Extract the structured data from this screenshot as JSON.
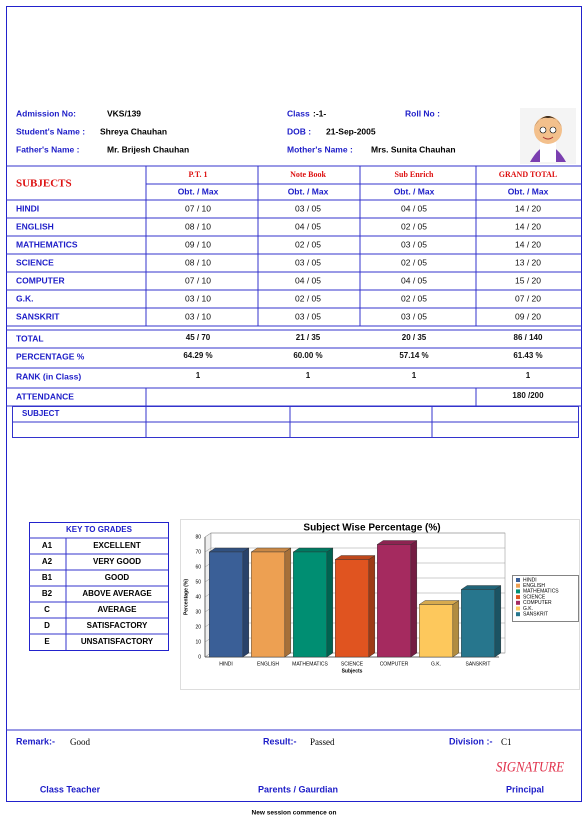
{
  "student": {
    "admission_label": "Admission No:",
    "admission_no": "VKS/139",
    "class_label": "Class",
    "class": ":-1-",
    "roll_label": "Roll No :",
    "name_label": "Student's Name  :",
    "name": "Shreya Chauhan",
    "dob_label": "DOB  :",
    "dob": "21-Sep-2005",
    "father_label": "Father's Name   :",
    "father": "Mr. Brijesh Chauhan",
    "mother_label": "Mother's Name :",
    "mother": "Mrs. Sunita Chauhan"
  },
  "marks": {
    "subjects_header": "SUBJECTS",
    "columns": [
      "P.T. 1",
      "Note Book",
      "Sub Enrich",
      "GRAND TOTAL"
    ],
    "subheaders": [
      "Obt. / Max",
      "Obt. / Max",
      "Obt. / Max",
      "Obt. / Max"
    ],
    "rows": [
      {
        "subject": "HINDI",
        "scores": [
          "07 / 10",
          "03 / 05",
          "04 / 05",
          "14 / 20"
        ]
      },
      {
        "subject": "ENGLISH",
        "scores": [
          "08 / 10",
          "04 / 05",
          "02 / 05",
          "14 / 20"
        ]
      },
      {
        "subject": "MATHEMATICS",
        "scores": [
          "09 / 10",
          "02 / 05",
          "03 / 05",
          "14 / 20"
        ]
      },
      {
        "subject": "SCIENCE",
        "scores": [
          "08 / 10",
          "03 / 05",
          "02 / 05",
          "13 / 20"
        ]
      },
      {
        "subject": "COMPUTER",
        "scores": [
          "07 / 10",
          "04 / 05",
          "04 / 05",
          "15 / 20"
        ]
      },
      {
        "subject": "G.K.",
        "scores": [
          "03 / 10",
          "02 / 05",
          "02 / 05",
          "07 / 20"
        ]
      },
      {
        "subject": "SANSKRIT",
        "scores": [
          "03 / 10",
          "03 / 05",
          "03 / 05",
          "09 / 20"
        ]
      }
    ]
  },
  "summary": [
    {
      "label": "TOTAL",
      "values": [
        "45 / 70",
        "21 / 35",
        "20 / 35",
        "86 / 140"
      ]
    },
    {
      "label": "PERCENTAGE %",
      "values": [
        "64.29 %",
        "60.00 %",
        "57.14 %",
        "61.43 %"
      ]
    },
    {
      "label": "RANK (in Class)",
      "values": [
        1,
        1,
        1,
        1
      ]
    },
    {
      "label": "ATTENDANCE",
      "values": [
        "180 /200"
      ]
    }
  ],
  "subject_box": {
    "header": "SUBJECT"
  },
  "grades": {
    "title": "KEY TO GRADES",
    "rows": [
      [
        "A1",
        "EXCELLENT"
      ],
      [
        "A2",
        "VERY GOOD"
      ],
      [
        "B1",
        "GOOD"
      ],
      [
        "B2",
        "ABOVE AVERAGE"
      ],
      [
        "C",
        "AVERAGE"
      ],
      [
        "D",
        "SATISFACTORY"
      ],
      [
        "E",
        "UNSATISFACTORY"
      ]
    ]
  },
  "chart_data": {
    "type": "bar",
    "title": "Subject Wise Percentage (%)",
    "x_label": "Subjects",
    "y_label": "Percentage (%)",
    "categories": [
      "HINDI",
      "ENGLISH",
      "MATHEMATICS",
      "SCIENCE",
      "COMPUTER",
      "G.K.",
      "SANSKRIT"
    ],
    "values": [
      70,
      70,
      70,
      65,
      75,
      35,
      45
    ],
    "colors": [
      "#3a5f97",
      "#eda052",
      "#008e72",
      "#e05420",
      "#a52a5f",
      "#fdc85c",
      "#27768d"
    ],
    "ylim": [
      0,
      80
    ],
    "yticks": [
      0,
      10,
      20,
      30,
      40,
      50,
      60,
      70,
      80
    ],
    "grid": true,
    "legend": "right"
  },
  "footer": {
    "remark_label": "Remark:-",
    "remark": "Good",
    "result_label": "Result:-",
    "result": "Passed",
    "division_label": "Division :-",
    "division": "C1",
    "signature": "SIGNATURE",
    "class_teacher": "Class Teacher",
    "parents": "Parents / Gaurdian",
    "principal": "Principal",
    "session_note": "New session commence on"
  }
}
